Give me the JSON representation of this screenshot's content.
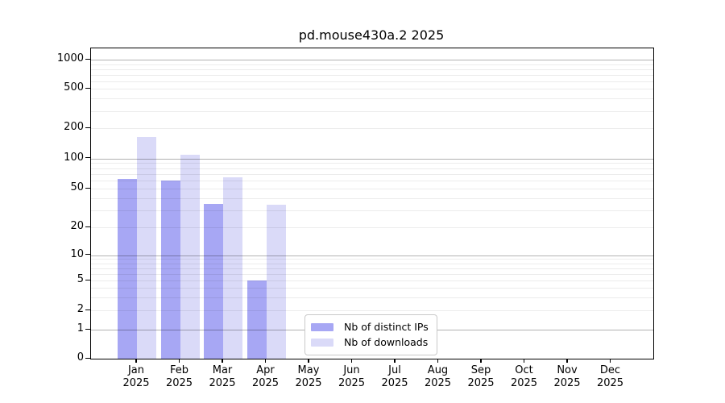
{
  "chart_data": {
    "type": "bar",
    "title": "pd.mouse430a.2 2025",
    "year_label": "2025",
    "categories": [
      "Jan",
      "Feb",
      "Mar",
      "Apr",
      "May",
      "Jun",
      "Jul",
      "Aug",
      "Sep",
      "Oct",
      "Nov",
      "Dec"
    ],
    "series": [
      {
        "name": "Nb of distinct IPs",
        "color": "#a7a7f4",
        "values": [
          63,
          60,
          35,
          5,
          0,
          0,
          0,
          0,
          0,
          0,
          0,
          0
        ]
      },
      {
        "name": "Nb of downloads",
        "color": "#dadaf8",
        "values": [
          163,
          110,
          65,
          34,
          0,
          0,
          0,
          0,
          0,
          0,
          0,
          0
        ]
      }
    ],
    "y_ticks": [
      0,
      1,
      2,
      5,
      10,
      20,
      50,
      100,
      200,
      500,
      1000
    ],
    "y_scale": "log-like",
    "grid": true,
    "major_grid_at": [
      1,
      10,
      100,
      1000
    ],
    "legend_position": "bottom-center-inside",
    "colors": {
      "axis": "#000000",
      "major_grid": "#b3b3b3",
      "minor_grid": "#ebebeb",
      "background": "#ffffff"
    }
  }
}
